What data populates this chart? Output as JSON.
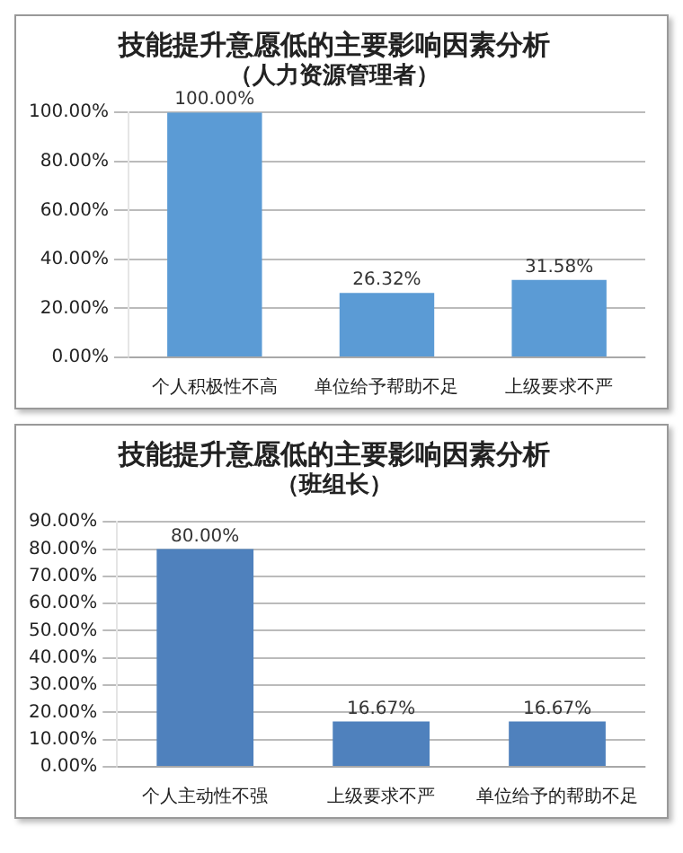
{
  "chart_data": [
    {
      "type": "bar",
      "title": "技能提升意愿低的主要影响因素分析",
      "subtitle": "（人力资源管理者）",
      "categories": [
        "个人积极性不高",
        "单位给予帮助不足",
        "上级要求不严"
      ],
      "values": [
        100,
        26.32,
        31.58
      ],
      "color": "#5b9bd5",
      "value_labels": [
        "100.00%",
        "26.32%",
        "31.58%"
      ],
      "ylim": [
        0,
        100
      ],
      "yticks": [
        {
          "value": 0,
          "label": "0.00%"
        },
        {
          "value": 20,
          "label": "20.00%"
        },
        {
          "value": 40,
          "label": "40.00%"
        },
        {
          "value": 60,
          "label": "60.00%"
        },
        {
          "value": 80,
          "label": "80.00%"
        },
        {
          "value": 100,
          "label": "100.00%"
        }
      ],
      "grid": "y",
      "legend": false
    },
    {
      "type": "bar",
      "title": "技能提升意愿低的主要影响因素分析",
      "subtitle": "（班组长）",
      "categories": [
        "个人主动性不强",
        "上级要求不严",
        "单位给予的帮助不足"
      ],
      "values": [
        80,
        16.67,
        16.67
      ],
      "color": "#4f81bd",
      "value_labels": [
        "80.00%",
        "16.67%",
        "16.67%"
      ],
      "ylim": [
        0,
        90
      ],
      "yticks": [
        {
          "value": 0,
          "label": "0.00%"
        },
        {
          "value": 10,
          "label": "10.00%"
        },
        {
          "value": 20,
          "label": "20.00%"
        },
        {
          "value": 30,
          "label": "30.00%"
        },
        {
          "value": 40,
          "label": "40.00%"
        },
        {
          "value": 50,
          "label": "50.00%"
        },
        {
          "value": 60,
          "label": "60.00%"
        },
        {
          "value": 70,
          "label": "70.00%"
        },
        {
          "value": 80,
          "label": "80.00%"
        },
        {
          "value": 90,
          "label": "90.00%"
        }
      ],
      "grid": "y",
      "legend": false
    }
  ]
}
